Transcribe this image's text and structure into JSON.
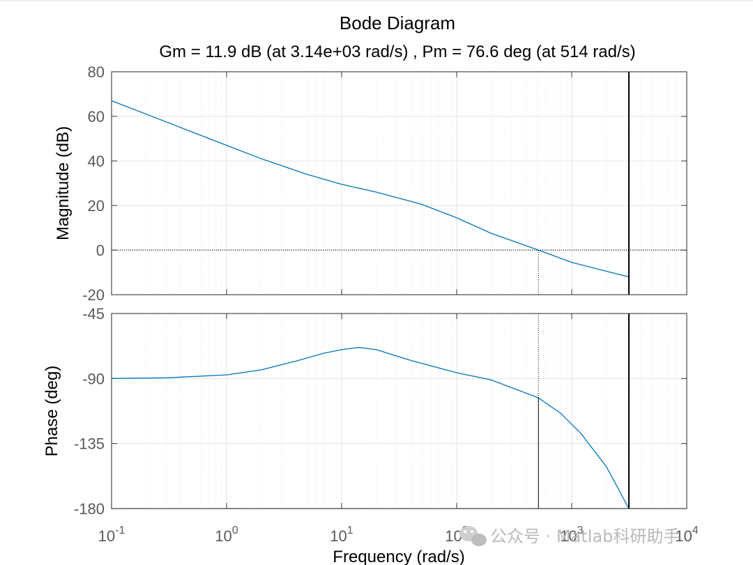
{
  "chart_data": {
    "type": "line",
    "title": "Bode Diagram",
    "subtitle": "Gm = 11.9 dB (at 3.14e+03 rad/s) ,  Pm = 76.6 deg (at 514 rad/s)",
    "xlabel": "Frequency  (rad/s)",
    "xscale": "log",
    "xlim": [
      0.1,
      10000
    ],
    "x_tick_labels": [
      {
        "base": "10",
        "exp": "-1"
      },
      {
        "base": "10",
        "exp": "0"
      },
      {
        "base": "10",
        "exp": "1"
      },
      {
        "base": "10",
        "exp": "2"
      },
      {
        "base": "10",
        "exp": "3"
      },
      {
        "base": "10",
        "exp": "4"
      }
    ],
    "grid": true,
    "line_color": "#0072BD",
    "gain_crossover_rad_s": 514,
    "phase_crossover_rad_s": 3140,
    "panels": [
      {
        "ylabel": "Magnitude (dB)",
        "ylim": [
          -20,
          80
        ],
        "yticks": [
          80,
          60,
          40,
          20,
          0,
          -20
        ],
        "ytick_labels": [
          "80",
          "60",
          "40",
          "20",
          "0",
          "-20"
        ],
        "reference_line": 0,
        "series": [
          {
            "x": [
              0.1,
              0.2,
              0.5,
              1,
              2,
              5,
              10,
              20,
              50,
              100,
              200,
              514,
              1000,
              2000,
              3140
            ],
            "y": [
              67,
              61,
              53,
              47,
              41,
              34,
              29.5,
              26,
              20.5,
              14.5,
              7.5,
              0,
              -5.5,
              -9.5,
              -12
            ]
          }
        ]
      },
      {
        "ylabel": "Phase (deg)",
        "ylim": [
          -180,
          -45
        ],
        "yticks": [
          -45,
          -90,
          -135,
          -180
        ],
        "ytick_labels": [
          "-45",
          "-90",
          "-135",
          "-180"
        ],
        "reference_line": -180,
        "series": [
          {
            "x": [
              0.1,
              0.3,
              1,
              2,
              4,
              7,
              10,
              14,
              20,
              40,
              100,
              200,
              514,
              800,
              1200,
              2000,
              3140
            ],
            "y": [
              -90,
              -89.5,
              -87.5,
              -84,
              -78,
              -72.5,
              -70,
              -68.5,
              -70,
              -77.5,
              -86,
              -91,
              -103.4,
              -114,
              -128,
              -151,
              -180
            ]
          }
        ]
      }
    ]
  },
  "watermark": {
    "icon": "wechat-icon",
    "text": "公众号 · Matlab科研助手"
  }
}
